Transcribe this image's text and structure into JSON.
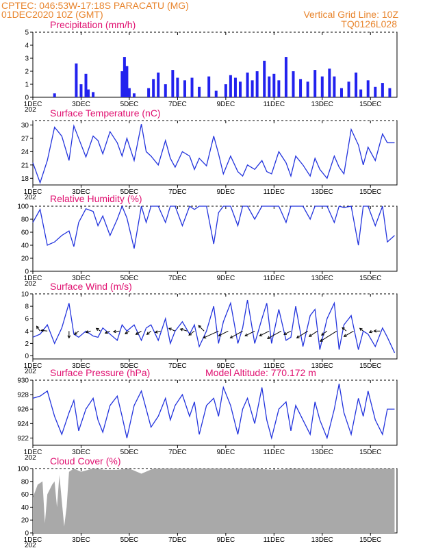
{
  "header": {
    "station": "CPTEC:   046:53W-17:18S  PARACATU (MG)",
    "date": "01DEC2020 10Z (GMT)",
    "grid_note": "Vertical Grid Line: 10Z",
    "run": "TQ0126L028"
  },
  "colors": {
    "header": "#e8842c",
    "title": "#e01070",
    "line": "#2233dd",
    "bars": "#2222ee",
    "cloud": "#a9a9a9"
  },
  "x_axis": {
    "labels": [
      "1DEC",
      "3DEC",
      "5DEC",
      "7DEC",
      "9DEC",
      "11DEC",
      "13DEC",
      "15DEC"
    ],
    "sublabel": "202",
    "start_day": 1,
    "end_day": 16.1
  },
  "chart_data": [
    {
      "type": "bar",
      "title": "Precipitation (mm/h)",
      "ylim": [
        0,
        5
      ],
      "yticks": [
        0,
        1,
        2,
        3,
        4,
        5
      ],
      "x": [
        1.9,
        2.8,
        3.0,
        3.2,
        3.3,
        3.5,
        4.7,
        4.8,
        4.9,
        5.0,
        5.2,
        5.8,
        6.0,
        6.2,
        6.5,
        6.8,
        7.0,
        7.3,
        7.6,
        7.9,
        8.3,
        8.6,
        9.0,
        9.2,
        9.4,
        9.6,
        9.9,
        10.1,
        10.3,
        10.6,
        10.8,
        11.0,
        11.2,
        11.5,
        11.8,
        12.1,
        12.4,
        12.7,
        13.0,
        13.3,
        13.5,
        13.8,
        14.1,
        14.4,
        14.6,
        14.9,
        15.2,
        15.5,
        15.8
      ],
      "values": [
        0.3,
        2.6,
        1.0,
        1.8,
        0.6,
        0.4,
        2.0,
        3.1,
        2.4,
        0.7,
        0.3,
        0.7,
        1.4,
        1.9,
        1.0,
        2.1,
        1.5,
        1.3,
        1.5,
        0.8,
        1.6,
        0.5,
        1.0,
        1.7,
        1.5,
        1.2,
        1.9,
        1.3,
        2.0,
        2.8,
        1.6,
        1.8,
        1.3,
        3.1,
        2.0,
        1.4,
        1.2,
        2.1,
        1.6,
        2.2,
        1.6,
        0.7,
        1.2,
        1.9,
        0.6,
        1.3,
        0.8,
        1.1,
        0.7
      ]
    },
    {
      "type": "line",
      "title": "Surface Temperature (nC)",
      "ylim": [
        16.5,
        31
      ],
      "yticks": [
        18,
        21,
        24,
        27,
        30
      ],
      "x": [
        1.0,
        1.3,
        1.6,
        1.9,
        2.2,
        2.5,
        2.7,
        2.9,
        3.2,
        3.5,
        3.7,
        3.9,
        4.2,
        4.5,
        4.7,
        4.9,
        5.2,
        5.5,
        5.7,
        5.9,
        6.2,
        6.5,
        6.7,
        6.9,
        7.2,
        7.5,
        7.7,
        7.9,
        8.2,
        8.5,
        8.7,
        8.9,
        9.2,
        9.5,
        9.7,
        9.9,
        10.2,
        10.5,
        10.7,
        10.9,
        11.2,
        11.5,
        11.7,
        11.9,
        12.2,
        12.5,
        12.7,
        12.9,
        13.2,
        13.5,
        13.7,
        13.9,
        14.2,
        14.5,
        14.7,
        14.9,
        15.2,
        15.5,
        15.7,
        16.0
      ],
      "values": [
        21.5,
        17.0,
        22.0,
        29.5,
        27.5,
        22.0,
        29.8,
        27.0,
        22.8,
        27.5,
        26.5,
        23.5,
        28.5,
        26.0,
        23.0,
        27.0,
        22.0,
        30.2,
        24.0,
        23.0,
        21.0,
        26.5,
        22.5,
        20.5,
        24.0,
        23.0,
        20.0,
        22.5,
        20.8,
        27.5,
        23.5,
        19.0,
        23.0,
        19.5,
        18.5,
        21.0,
        20.0,
        22.0,
        19.5,
        19.0,
        24.0,
        21.5,
        18.5,
        23.0,
        21.0,
        18.5,
        22.5,
        20.0,
        18.0,
        23.0,
        20.5,
        19.0,
        29.0,
        25.5,
        21.0,
        25.0,
        22.0,
        28.0,
        26.0,
        26.0
      ]
    },
    {
      "type": "line",
      "title": "Relative Humidity (%)",
      "ylim": [
        0,
        100
      ],
      "yticks": [
        0,
        20,
        40,
        60,
        80,
        100
      ],
      "x": [
        1.0,
        1.3,
        1.6,
        1.9,
        2.2,
        2.5,
        2.7,
        2.9,
        3.2,
        3.5,
        3.7,
        3.9,
        4.2,
        4.5,
        4.7,
        4.9,
        5.2,
        5.5,
        5.7,
        5.9,
        6.2,
        6.5,
        6.7,
        6.9,
        7.2,
        7.5,
        7.7,
        7.9,
        8.2,
        8.5,
        8.7,
        8.9,
        9.2,
        9.5,
        9.7,
        9.9,
        10.2,
        10.5,
        10.7,
        10.9,
        11.2,
        11.5,
        11.7,
        11.9,
        12.2,
        12.5,
        12.7,
        12.9,
        13.2,
        13.5,
        13.7,
        13.9,
        14.2,
        14.5,
        14.7,
        14.9,
        15.2,
        15.5,
        15.7,
        16.0
      ],
      "values": [
        75,
        95,
        40,
        45,
        55,
        62,
        38,
        75,
        96,
        92,
        70,
        85,
        55,
        80,
        100,
        82,
        35,
        100,
        75,
        100,
        100,
        75,
        100,
        100,
        70,
        100,
        95,
        100,
        100,
        42,
        90,
        100,
        100,
        70,
        100,
        100,
        80,
        100,
        100,
        100,
        100,
        75,
        100,
        100,
        100,
        80,
        100,
        100,
        100,
        75,
        100,
        98,
        100,
        40,
        100,
        100,
        70,
        100,
        45,
        55
      ]
    },
    {
      "type": "line",
      "title": "Surface Wind (m/s)",
      "ylim": [
        -0.5,
        10
      ],
      "yticks": [
        0,
        2,
        4,
        6,
        8,
        10
      ],
      "x": [
        1.0,
        1.3,
        1.6,
        1.9,
        2.2,
        2.5,
        2.7,
        2.9,
        3.2,
        3.5,
        3.7,
        3.9,
        4.2,
        4.5,
        4.7,
        4.9,
        5.2,
        5.5,
        5.7,
        5.9,
        6.2,
        6.5,
        6.7,
        6.9,
        7.2,
        7.5,
        7.7,
        7.9,
        8.2,
        8.5,
        8.7,
        8.9,
        9.2,
        9.5,
        9.7,
        9.9,
        10.2,
        10.5,
        10.7,
        10.9,
        11.2,
        11.5,
        11.7,
        11.9,
        12.2,
        12.5,
        12.7,
        12.9,
        13.2,
        13.5,
        13.7,
        13.9,
        14.2,
        14.5,
        14.7,
        14.9,
        15.2,
        15.5,
        15.7,
        16.0
      ],
      "values": [
        3.0,
        3.5,
        5.0,
        2.0,
        4.5,
        8.5,
        3.5,
        3.0,
        4.0,
        3.2,
        3.0,
        4.5,
        3.5,
        2.5,
        5.0,
        4.0,
        5.0,
        2.5,
        4.5,
        5.0,
        2.5,
        6.0,
        2.0,
        4.0,
        5.5,
        3.5,
        5.0,
        1.5,
        4.0,
        8.0,
        2.0,
        5.5,
        8.5,
        2.0,
        4.5,
        9.0,
        2.0,
        6.0,
        8.5,
        2.0,
        7.5,
        2.5,
        3.0,
        8.0,
        1.5,
        6.5,
        7.5,
        1.0,
        6.0,
        8.5,
        1.0,
        5.0,
        6.5,
        1.0,
        4.0,
        3.5,
        1.5,
        4.5,
        3.0,
        0.5
      ]
    },
    {
      "type": "line",
      "title": "Surface Pressure (hPa)",
      "annotation": "Model Altitude: 770.172  m",
      "ylim": [
        921,
        930
      ],
      "yticks": [
        922,
        924,
        926,
        928,
        930
      ],
      "x": [
        1.0,
        1.3,
        1.6,
        1.9,
        2.2,
        2.5,
        2.7,
        2.9,
        3.2,
        3.5,
        3.7,
        3.9,
        4.2,
        4.5,
        4.7,
        4.9,
        5.2,
        5.5,
        5.7,
        5.9,
        6.2,
        6.5,
        6.7,
        6.9,
        7.2,
        7.5,
        7.7,
        7.9,
        8.2,
        8.5,
        8.7,
        8.9,
        9.2,
        9.5,
        9.7,
        9.9,
        10.2,
        10.5,
        10.7,
        10.9,
        11.2,
        11.5,
        11.7,
        11.9,
        12.2,
        12.5,
        12.7,
        12.9,
        13.2,
        13.5,
        13.7,
        13.9,
        14.2,
        14.5,
        14.7,
        14.9,
        15.2,
        15.5,
        15.7,
        16.0
      ],
      "values": [
        927.5,
        927.8,
        928.5,
        925.0,
        922.5,
        925.5,
        927.2,
        923.0,
        926.0,
        927.5,
        924.5,
        922.8,
        926.5,
        927.8,
        925.0,
        922.0,
        926.5,
        928.5,
        926.0,
        923.5,
        925.0,
        927.5,
        924.5,
        926.5,
        928.0,
        925.0,
        927.0,
        922.5,
        926.5,
        927.5,
        925.0,
        929.0,
        926.5,
        922.5,
        926.0,
        927.5,
        924.0,
        929.0,
        924.5,
        922.0,
        926.0,
        927.0,
        923.0,
        926.5,
        924.5,
        922.5,
        927.0,
        924.5,
        922.0,
        926.0,
        929.5,
        925.5,
        922.5,
        927.5,
        925.0,
        928.5,
        924.5,
        922.5,
        926.0,
        926.0
      ]
    },
    {
      "type": "area",
      "title": "Cloud Cover (%)",
      "ylim": [
        0,
        100
      ],
      "yticks": [
        0,
        20,
        40,
        60,
        80,
        100
      ],
      "x": [
        1.0,
        1.2,
        1.4,
        1.5,
        1.6,
        1.8,
        1.9,
        2.0,
        2.1,
        2.3,
        2.4,
        2.5,
        2.7,
        3.0,
        3.5,
        4.0,
        4.5,
        5.0,
        5.5,
        6.0,
        6.5,
        7.0,
        8.0,
        9.0,
        10.0,
        11.0,
        12.0,
        13.0,
        14.0,
        15.0,
        16.0
      ],
      "values": [
        55,
        75,
        80,
        15,
        60,
        75,
        80,
        40,
        90,
        10,
        40,
        95,
        100,
        95,
        100,
        98,
        98,
        100,
        92,
        100,
        100,
        100,
        100,
        100,
        100,
        98,
        100,
        100,
        100,
        100,
        100
      ]
    }
  ],
  "wind_arrows": [
    {
      "day": 1.3,
      "dx": -5,
      "dy": -7
    },
    {
      "day": 1.6,
      "dx": -9,
      "dy": -1
    },
    {
      "day": 2.5,
      "dx": 0,
      "dy": 10
    },
    {
      "day": 2.9,
      "dx": -6,
      "dy": 5
    },
    {
      "day": 3.4,
      "dx": -7,
      "dy": 2
    },
    {
      "day": 3.8,
      "dx": -6,
      "dy": -4
    },
    {
      "day": 4.2,
      "dx": -7,
      "dy": 3
    },
    {
      "day": 4.6,
      "dx": -9,
      "dy": 1
    },
    {
      "day": 5.0,
      "dx": -6,
      "dy": 4
    },
    {
      "day": 5.5,
      "dx": -8,
      "dy": 5
    },
    {
      "day": 5.9,
      "dx": -6,
      "dy": 5
    },
    {
      "day": 6.3,
      "dx": -8,
      "dy": 2
    },
    {
      "day": 6.9,
      "dx": -9,
      "dy": -4
    },
    {
      "day": 7.4,
      "dx": -10,
      "dy": -3
    },
    {
      "day": 7.7,
      "dx": -8,
      "dy": 6
    },
    {
      "day": 8.1,
      "dx": -8,
      "dy": -8
    },
    {
      "day": 8.7,
      "dx": -22,
      "dy": 10
    },
    {
      "day": 9.1,
      "dx": -14,
      "dy": 7
    },
    {
      "day": 9.7,
      "dx": -18,
      "dy": 10
    },
    {
      "day": 10.2,
      "dx": -14,
      "dy": 7
    },
    {
      "day": 10.8,
      "dx": -14,
      "dy": 7
    },
    {
      "day": 11.3,
      "dx": -20,
      "dy": 11
    },
    {
      "day": 11.7,
      "dx": -10,
      "dy": 5
    },
    {
      "day": 12.4,
      "dx": -16,
      "dy": 10
    },
    {
      "day": 12.8,
      "dx": -12,
      "dy": 8
    },
    {
      "day": 13.2,
      "dx": -8,
      "dy": 6
    },
    {
      "day": 13.6,
      "dx": -24,
      "dy": 15
    },
    {
      "day": 14.0,
      "dx": -6,
      "dy": -5
    },
    {
      "day": 14.3,
      "dx": -14,
      "dy": 8
    },
    {
      "day": 14.7,
      "dx": -5,
      "dy": -4
    },
    {
      "day": 15.1,
      "dx": -5,
      "dy": 2
    },
    {
      "day": 15.4,
      "dx": -9,
      "dy": 0
    }
  ]
}
